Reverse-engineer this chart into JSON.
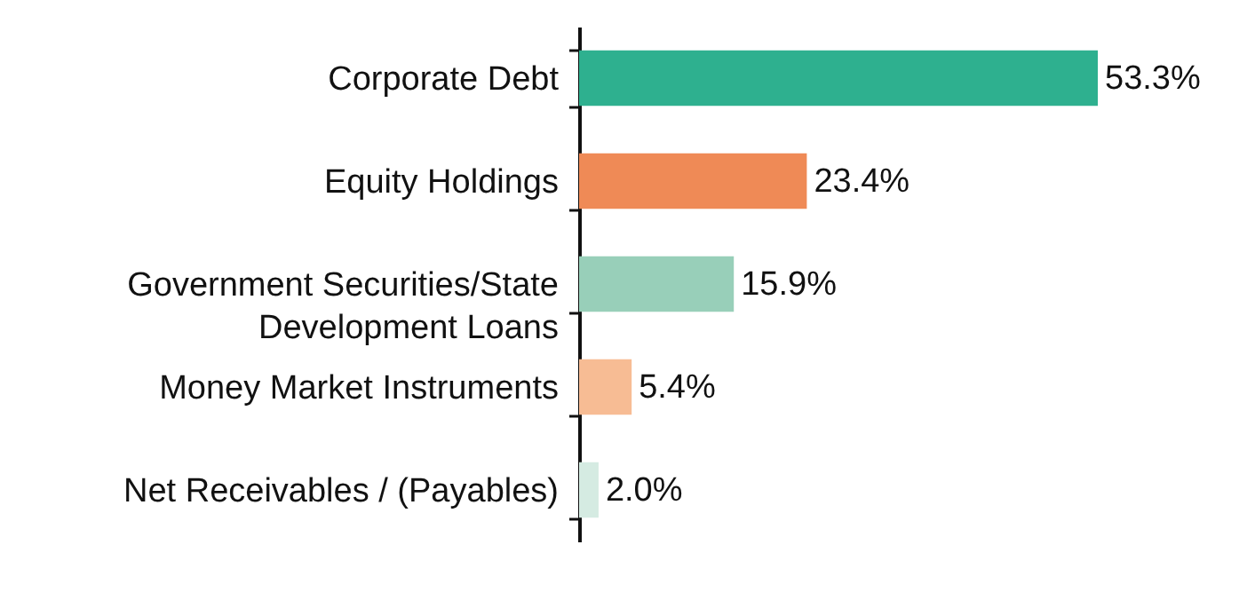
{
  "chart_data": {
    "type": "bar",
    "orientation": "horizontal",
    "categories": [
      "Corporate Debt",
      "Equity Holdings",
      "Government Securities/State Development Loans",
      "Money Market Instruments",
      "Net Receivables / (Payables)"
    ],
    "values": [
      53.3,
      23.4,
      15.9,
      5.4,
      2.0
    ],
    "colors": [
      "#2eb08f",
      "#ef8a56",
      "#98cfb9",
      "#f7bc94",
      "#d5ebe2"
    ],
    "value_labels": [
      "53.3%",
      "23.4%",
      "15.9%",
      "5.4%",
      "2.0%"
    ]
  }
}
